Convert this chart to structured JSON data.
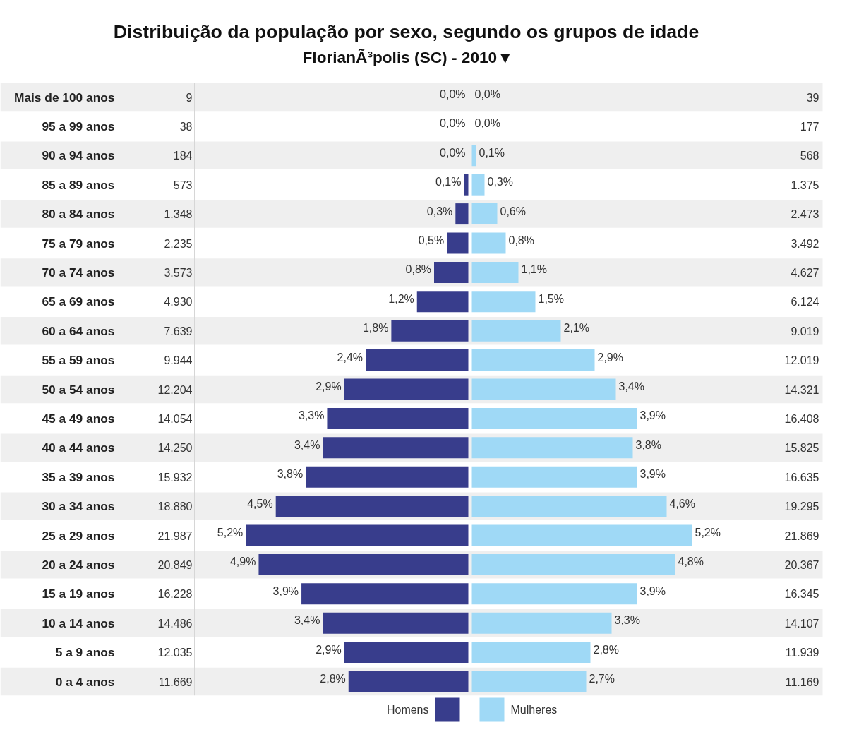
{
  "chart_data": [
    {
      "type": "bar",
      "orientation": "horizontal",
      "title": "Distribuição da população por sexo, segundo os grupos de idade",
      "subtitle": "FlorianÃ³polis (SC) - 2010 ▾",
      "categories": [
        "Mais de 100 anos",
        "95 a 99 anos",
        "90 a 94 anos",
        "85 a 89 anos",
        "80 a 84 anos",
        "75 a 79 anos",
        "70 a 74 anos",
        "65 a 69 anos",
        "60 a 64 anos",
        "55 a 59 anos",
        "50 a 54 anos",
        "45 a 49 anos",
        "40 a 44 anos",
        "35 a 39 anos",
        "30 a 34 anos",
        "25 a 29 anos",
        "20 a 24 anos",
        "15 a 19 anos",
        "10 a 14 anos",
        "5 a 9 anos",
        "0 a 4 anos"
      ],
      "xlim": [
        6.4,
        0
      ],
      "tick_labels": "y",
      "series": [
        {
          "name": "Homens",
          "color": "#383d8c",
          "values": [
            0.0,
            0.0,
            0.0,
            0.1,
            0.3,
            0.5,
            0.8,
            1.2,
            1.8,
            2.4,
            2.9,
            3.3,
            3.4,
            3.8,
            4.5,
            5.2,
            4.9,
            3.9,
            3.4,
            2.9,
            2.8
          ],
          "value_labels": [
            "0,0%",
            "0,0%",
            "0,0%",
            "0,1%",
            "0,3%",
            "0,5%",
            "0,8%",
            "1,2%",
            "1,8%",
            "2,4%",
            "2,9%",
            "3,3%",
            "3,4%",
            "3,8%",
            "4,5%",
            "5,2%",
            "4,9%",
            "3,9%",
            "3,4%",
            "2,9%",
            "2,8%"
          ]
        }
      ],
      "legend": "bottom"
    },
    {
      "type": "bar",
      "orientation": "horizontal",
      "categories": [
        null,
        null,
        null,
        null,
        null,
        null,
        null,
        null,
        null,
        null,
        null,
        null,
        null,
        null,
        null,
        null,
        null,
        null,
        null,
        null,
        null
      ],
      "xlim": [
        0,
        6.4
      ],
      "series": [
        {
          "name": "Mulheres",
          "color": "#9fd9f6",
          "values": [
            0.0,
            0.0,
            0.1,
            0.3,
            0.6,
            0.8,
            1.1,
            1.5,
            2.1,
            2.9,
            3.4,
            3.9,
            3.8,
            3.9,
            4.6,
            5.2,
            4.8,
            3.9,
            3.3,
            2.8,
            2.7
          ],
          "value_labels": [
            "0,0%",
            "0,0%",
            "0,1%",
            "0,3%",
            "0,6%",
            "0,8%",
            "1,1%",
            "1,5%",
            "2,1%",
            "2,9%",
            "3,4%",
            "3,9%",
            "3,8%",
            "3,9%",
            "4,6%",
            "5,2%",
            "4,8%",
            "3,9%",
            "3,3%",
            "2,8%",
            "2,7%"
          ]
        }
      ],
      "legend": "bottom"
    },
    {
      "type": "other",
      "annotations": [
        "9",
        "38",
        "184",
        "573",
        "1.348",
        "2.235",
        "3.573",
        "4.930",
        "7.639",
        "9.944",
        "12.204",
        "14.054",
        "14.250",
        "15.932",
        "18.880",
        "21.987",
        "20.849",
        "16.228",
        "14.486",
        "12.035",
        "11.669"
      ]
    },
    {
      "type": "other",
      "annotations": [
        "39",
        "177",
        "568",
        "1.375",
        "2.473",
        "3.492",
        "4.627",
        "6.124",
        "9.019",
        "12.019",
        "14.321",
        "16.408",
        "15.825",
        "16.635",
        "19.295",
        "21.869",
        "20.367",
        "16.345",
        "14.107",
        "11.939",
        "11.169"
      ]
    }
  ]
}
